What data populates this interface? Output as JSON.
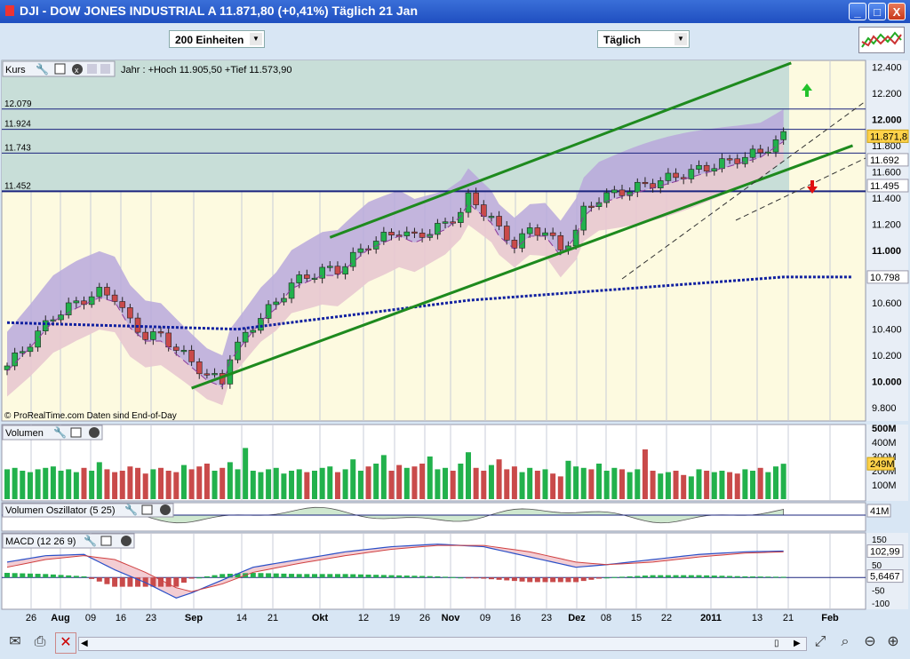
{
  "window": {
    "title": "DJI - DOW JONES INDUSTRIAL A    11.871,80 (+0,41%)    Täglich  21 Jan",
    "minimize": "_",
    "maximize": "□",
    "close": "X"
  },
  "toolbar": {
    "units_select": "200 Einheiten",
    "period_select": "Täglich"
  },
  "price_panel": {
    "label": "Kurs",
    "info": "Jahr : +Hoch 11.905,50 +Tief 11.573,90",
    "credit": "© ProRealTime.com  Daten sind End-of-Day"
  },
  "volume_panel": {
    "label": "Volumen"
  },
  "vol_osc_panel": {
    "label": "Volumen Oszillator (5 25)"
  },
  "macd_panel": {
    "label": "MACD (12 26 9)"
  },
  "colors": {
    "up": "#22b14c",
    "down": "#c94a4a",
    "channel": "#1e8a1e",
    "ma200": "#1020a0",
    "bollinger_fill": "#9b8ad6",
    "level_line": "#1a237e"
  },
  "chart_data": [
    {
      "type": "candlestick",
      "title": "DJI - DOW JONES INDUSTRIAL A",
      "x_ticks": [
        "26",
        "Aug",
        "09",
        "16",
        "23",
        "Sep",
        "14",
        "21",
        "Okt",
        "12",
        "19",
        "26",
        "Nov",
        "09",
        "16",
        "23",
        "Dez",
        "08",
        "15",
        "22",
        "2011",
        "13",
        "21",
        "Feb"
      ],
      "y_ticks": [
        "12.400",
        "12.200",
        "12.000",
        "11.800",
        "11.600",
        "11.400",
        "11.200",
        "11.000",
        "10.800",
        "10.600",
        "10.400",
        "10.200",
        "10.000",
        "9.800"
      ],
      "ylim": [
        9700,
        12450
      ],
      "levels": [
        "12.079",
        "11.924",
        "11.743",
        "11.452"
      ],
      "price_tags": [
        "11.871,8",
        "11.692",
        "11.495",
        "10.798"
      ],
      "close_path": [
        [
          0,
          10120
        ],
        [
          3,
          10300
        ],
        [
          6,
          10500
        ],
        [
          9,
          10600
        ],
        [
          12,
          10680
        ],
        [
          14,
          10650
        ],
        [
          16,
          10450
        ],
        [
          18,
          10350
        ],
        [
          20,
          10350
        ],
        [
          22,
          10250
        ],
        [
          24,
          10150
        ],
        [
          26,
          10050
        ],
        [
          28,
          10000
        ],
        [
          29,
          10200
        ],
        [
          31,
          10350
        ],
        [
          33,
          10500
        ],
        [
          35,
          10600
        ],
        [
          37,
          10750
        ],
        [
          39,
          10800
        ],
        [
          41,
          10850
        ],
        [
          43,
          10850
        ],
        [
          45,
          10950
        ],
        [
          47,
          11050
        ],
        [
          49,
          11100
        ],
        [
          51,
          11150
        ],
        [
          53,
          11100
        ],
        [
          55,
          11150
        ],
        [
          57,
          11200
        ],
        [
          59,
          11300
        ],
        [
          60,
          11400
        ],
        [
          61,
          11350
        ],
        [
          63,
          11250
        ],
        [
          64,
          11150
        ],
        [
          66,
          11050
        ],
        [
          68,
          11150
        ],
        [
          70,
          11150
        ],
        [
          72,
          11000
        ],
        [
          74,
          11150
        ],
        [
          75,
          11300
        ],
        [
          77,
          11400
        ],
        [
          80,
          11450
        ],
        [
          83,
          11500
        ],
        [
          86,
          11550
        ],
        [
          89,
          11600
        ],
        [
          92,
          11650
        ],
        [
          95,
          11700
        ],
        [
          98,
          11750
        ],
        [
          101,
          11871.8
        ]
      ],
      "ma200": [
        [
          0,
          10450
        ],
        [
          30,
          10400
        ],
        [
          60,
          10620
        ],
        [
          101,
          10798
        ]
      ],
      "channel_upper": [
        [
          42,
          11100
        ],
        [
          102,
          12430
        ]
      ],
      "channel_lower": [
        [
          24,
          9950
        ],
        [
          110,
          11800
        ]
      ]
    },
    {
      "type": "bar",
      "title": "Volumen",
      "y_ticks": [
        "500M",
        "400M",
        "300M",
        "200M",
        "100M"
      ],
      "ylim": [
        0,
        500
      ],
      "last_value": "249M",
      "values": [
        210,
        220,
        200,
        190,
        210,
        220,
        230,
        200,
        210,
        190,
        220,
        200,
        260,
        210,
        190,
        200,
        230,
        220,
        180,
        210,
        220,
        200,
        190,
        240,
        210,
        230,
        250,
        200,
        220,
        260,
        210,
        360,
        200,
        190,
        210,
        220,
        180,
        200,
        210,
        190,
        200,
        220,
        230,
        190,
        210,
        280,
        200,
        230,
        250,
        310,
        200,
        240,
        220,
        230,
        250,
        300,
        210,
        220,
        200,
        250,
        330,
        220,
        200,
        240,
        280,
        210,
        230,
        190,
        220,
        200,
        210,
        180,
        160,
        270,
        230,
        220,
        210,
        250,
        200,
        220,
        210,
        190,
        210,
        350,
        200,
        180,
        190,
        200,
        170,
        160,
        210,
        200,
        190,
        200,
        190,
        180,
        210,
        200,
        220,
        190,
        230,
        249
      ]
    },
    {
      "type": "area",
      "title": "Volumen Oszillator (5 25)",
      "last_value": "41M"
    },
    {
      "type": "bar",
      "title": "MACD (12 26 9)",
      "y_ticks": [
        "150",
        "100",
        "50",
        "0",
        "-50",
        "-100"
      ],
      "ylim": [
        -110,
        160
      ],
      "tags": [
        "102,99",
        "5,6467"
      ],
      "macd": [
        [
          0,
          60
        ],
        [
          5,
          85
        ],
        [
          10,
          90
        ],
        [
          14,
          30
        ],
        [
          18,
          -20
        ],
        [
          22,
          -80
        ],
        [
          24,
          -60
        ],
        [
          28,
          -10
        ],
        [
          32,
          40
        ],
        [
          38,
          70
        ],
        [
          44,
          100
        ],
        [
          50,
          120
        ],
        [
          56,
          130
        ],
        [
          62,
          120
        ],
        [
          68,
          80
        ],
        [
          74,
          40
        ],
        [
          78,
          50
        ],
        [
          84,
          70
        ],
        [
          90,
          90
        ],
        [
          96,
          100
        ],
        [
          101,
          103
        ]
      ],
      "signal": [
        [
          0,
          40
        ],
        [
          5,
          70
        ],
        [
          10,
          85
        ],
        [
          14,
          70
        ],
        [
          18,
          20
        ],
        [
          22,
          -40
        ],
        [
          24,
          -55
        ],
        [
          28,
          -25
        ],
        [
          32,
          20
        ],
        [
          38,
          55
        ],
        [
          44,
          85
        ],
        [
          50,
          110
        ],
        [
          56,
          125
        ],
        [
          62,
          125
        ],
        [
          68,
          100
        ],
        [
          74,
          60
        ],
        [
          78,
          50
        ],
        [
          84,
          60
        ],
        [
          90,
          80
        ],
        [
          96,
          95
        ],
        [
          101,
          100
        ]
      ]
    }
  ]
}
